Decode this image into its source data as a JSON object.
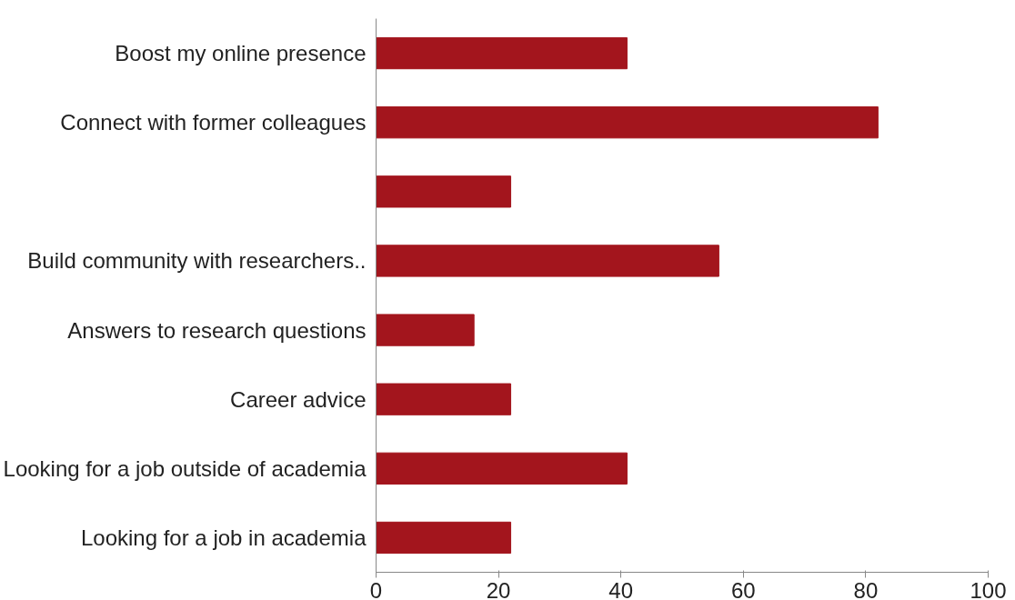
{
  "chart_data": {
    "type": "bar",
    "orientation": "horizontal",
    "categories": [
      "Boost my online presence",
      "Connect with former colleagues",
      null,
      "Build community with researchers..",
      "Answers to research questions",
      "Career advice",
      "Looking for a job outside of academia",
      "Looking for a job in academia"
    ],
    "values": [
      41,
      82,
      22,
      56,
      16,
      22,
      41,
      22
    ],
    "color": "#a3151d",
    "xlim": [
      0,
      100
    ],
    "xticks": [
      0,
      20,
      40,
      60,
      80,
      100
    ],
    "grid": false
  }
}
